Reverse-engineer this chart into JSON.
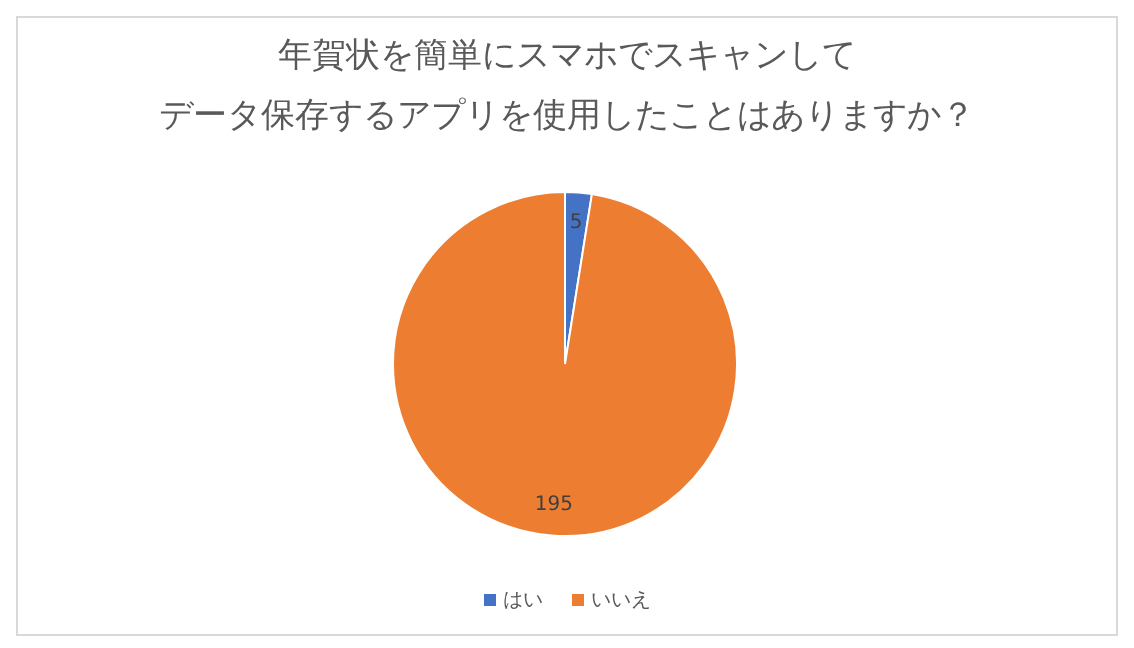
{
  "chart_data": {
    "type": "pie",
    "title": "年賀状を簡単にスマホでスキャンして",
    "subtitle": "データ保存するアプリを使用したことはありますか？",
    "categories": [
      "はい",
      "いいえ"
    ],
    "values": [
      5,
      195
    ],
    "colors": [
      "#4472c4",
      "#ed7d31"
    ],
    "data_labels": true,
    "legend": "bottom"
  }
}
